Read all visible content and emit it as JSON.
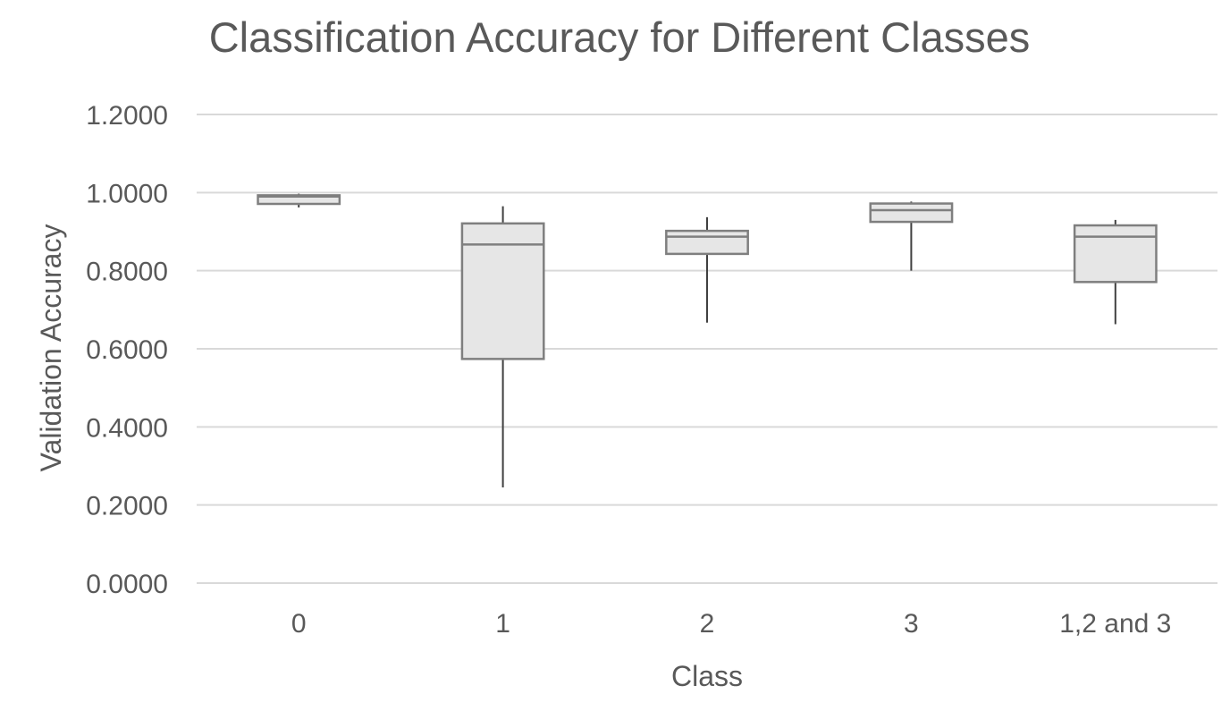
{
  "chart_data": {
    "type": "box",
    "title": "Classification Accuracy for Different Classes",
    "xlabel": "Class",
    "ylabel": "Validation Accuracy",
    "ylim": [
      0,
      1.2
    ],
    "yticks": [
      "0.0000",
      "0.2000",
      "0.4000",
      "0.6000",
      "0.8000",
      "1.0000",
      "1.2000"
    ],
    "grid": true,
    "categories": [
      "0",
      "1",
      "2",
      "3",
      "1,2 and 3"
    ],
    "boxes": [
      {
        "category": "0",
        "min": 0.962,
        "q1": 0.971,
        "median": 0.99,
        "q3": 0.993,
        "max": 0.997
      },
      {
        "category": "1",
        "min": 0.245,
        "q1": 0.574,
        "median": 0.867,
        "q3": 0.921,
        "max": 0.965
      },
      {
        "category": "2",
        "min": 0.667,
        "q1": 0.843,
        "median": 0.887,
        "q3": 0.902,
        "max": 0.937
      },
      {
        "category": "3",
        "min": 0.8,
        "q1": 0.925,
        "median": 0.955,
        "q3": 0.972,
        "max": 0.977
      },
      {
        "category": "1,2 and 3",
        "min": 0.663,
        "q1": 0.771,
        "median": 0.887,
        "q3": 0.916,
        "max": 0.93
      }
    ]
  }
}
